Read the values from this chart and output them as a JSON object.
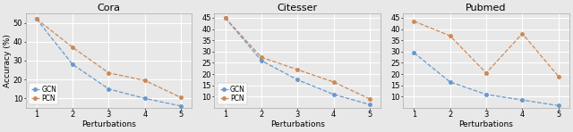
{
  "plots": [
    {
      "title": "Cora",
      "gcn": [
        52,
        28,
        15,
        10,
        6
      ],
      "pcn": [
        52,
        37,
        23.5,
        19.5,
        10.5
      ],
      "ylim": [
        5,
        55
      ],
      "yticks": [
        10,
        20,
        30,
        40,
        50
      ],
      "ylabel": "Accuracy (%)",
      "show_legend": true
    },
    {
      "title": "Citesser",
      "gcn": [
        45,
        26,
        17.5,
        11,
        6.5
      ],
      "pcn": [
        45,
        27.5,
        22,
        16.5,
        9
      ],
      "ylim": [
        5,
        47
      ],
      "yticks": [
        10,
        15,
        20,
        25,
        30,
        35,
        40,
        45
      ],
      "ylabel": "",
      "show_legend": true
    },
    {
      "title": "Pubmed",
      "gcn": [
        29.5,
        16.5,
        11,
        8.5,
        6
      ],
      "pcn": [
        43.5,
        37,
        20.5,
        38,
        19
      ],
      "ylim": [
        5,
        47
      ],
      "yticks": [
        10,
        15,
        20,
        25,
        30,
        35,
        40,
        45
      ],
      "ylabel": "",
      "show_legend": false
    }
  ],
  "x": [
    1,
    2,
    3,
    4,
    5
  ],
  "xlabel": "Perturbations",
  "gcn_color": "#6699cc",
  "pcn_color": "#cc8855",
  "gcn_label": "GCN",
  "pcn_label": "PCN",
  "bg_color": "#e8e8e8",
  "axes_bg": "#e8e8e8",
  "grid_color": "white",
  "legend_fontsize": 5.5,
  "title_fontsize": 8,
  "label_fontsize": 6.5,
  "tick_fontsize": 6,
  "markersize": 2.5,
  "linewidth": 0.9,
  "linestyle": "--"
}
